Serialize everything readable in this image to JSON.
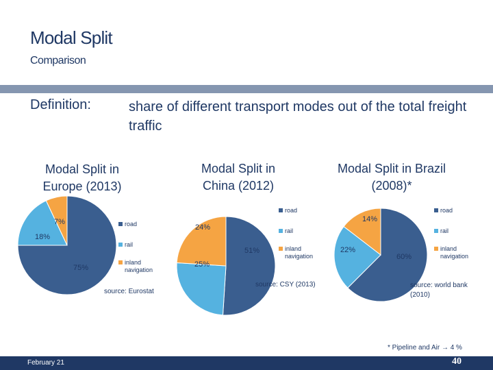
{
  "header": {
    "title": "Modal Split",
    "subtitle": "Comparison"
  },
  "definition": {
    "label": "Definition:",
    "text": "share of different transport modes out of the total freight traffic"
  },
  "colors": {
    "road": "#3a5e8f",
    "rail": "#55b2e0",
    "inland": "#f5a443",
    "bar": "#8596b0",
    "footer": "#1f3864"
  },
  "chart_data": [
    {
      "type": "pie",
      "title": "Modal Split in Europe (2013)",
      "categories": [
        "road",
        "rail",
        "inland navigation"
      ],
      "values": [
        75,
        18,
        7
      ],
      "labels": [
        "75%",
        "18%",
        "7%"
      ],
      "source": "source: Eurostat"
    },
    {
      "type": "pie",
      "title": "Modal Split in China (2012)",
      "categories": [
        "road",
        "rail",
        "inland navigation"
      ],
      "values": [
        51,
        25,
        24
      ],
      "labels": [
        "51%",
        "25%",
        "24%"
      ],
      "source": "source: CSY (2013)"
    },
    {
      "type": "pie",
      "title": "Modal Split in Brazil (2008)*",
      "categories": [
        "road",
        "rail",
        "inland navigation"
      ],
      "values": [
        60,
        22,
        14
      ],
      "labels": [
        "60%",
        "22%",
        "14%"
      ],
      "source": "source: world bank (2010)"
    }
  ],
  "footnote": "* Pipeline and Air → 4 %",
  "footer": {
    "date": "February 21",
    "page": "40"
  }
}
